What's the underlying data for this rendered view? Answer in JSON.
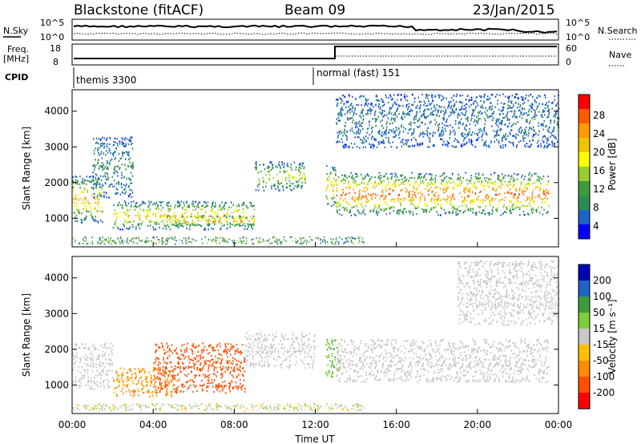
{
  "header": {
    "station": "Blackstone (fitACF)",
    "beam": "Beam 09",
    "date": "23/Jan/2015"
  },
  "noise_panel": {
    "left_label": "N.Sky",
    "right_label": "N.Search",
    "left_ticks": [
      "10^5",
      "10^0"
    ],
    "right_ticks": [
      "10^5",
      "10^0"
    ]
  },
  "freq_panel": {
    "left_label_line1": "Freq.",
    "left_label_line2": "[MHz]",
    "left_ticks": [
      "18",
      "8"
    ],
    "right_label": "Nave",
    "right_ticks": [
      "60",
      "0"
    ]
  },
  "cpid_panel": {
    "label": "CPID",
    "mode_1": "themis 3300",
    "mode_2": "normal (fast) 151"
  },
  "power_scale": {
    "title": "Power [dB]",
    "ticks": [
      "28",
      "24",
      "20",
      "16",
      "12",
      "8",
      "4"
    ],
    "colors": [
      "#ff0000",
      "#ff5a00",
      "#ff9a00",
      "#f2c400",
      "#ffff00",
      "#9acd32",
      "#3c9c3c",
      "#2e8b57",
      "#1e64c8",
      "#0000ff"
    ]
  },
  "velocity_scale": {
    "title": "Velocity [m s⁻¹]",
    "ticks": [
      "200",
      "100",
      "50",
      "15",
      "-15",
      "-50",
      "-100",
      "-200"
    ],
    "colors": [
      "#0000b4",
      "#1e64c8",
      "#3c9c3c",
      "#7ccd3c",
      "#c8c8c8",
      "#ffc000",
      "#ff8c00",
      "#ff5000",
      "#ff0000"
    ]
  },
  "chart_data": [
    {
      "type": "heatmap",
      "title": "Power [dB]",
      "xlabel": "",
      "ylabel": "Slant Range [km]",
      "x_ticks": [
        "00:00",
        "04:00",
        "08:00",
        "12:00",
        "16:00",
        "20:00",
        "00:00"
      ],
      "y_ticks": [
        1000,
        2000,
        3000,
        4000
      ],
      "ylim": [
        200,
        4600
      ],
      "xlim_hours": [
        0,
        24
      ],
      "scatter_regions": [
        {
          "t_start": 0.0,
          "t_end": 1.5,
          "range_km": [
            900,
            2200
          ],
          "peak_db": 22
        },
        {
          "t_start": 1.0,
          "t_end": 3.0,
          "range_km": [
            1600,
            3300
          ],
          "peak_db": 8
        },
        {
          "t_start": 2.0,
          "t_end": 9.0,
          "range_km": [
            700,
            1500
          ],
          "peak_db": 20
        },
        {
          "t_start": 4.5,
          "t_end": 9.0,
          "range_km": [
            800,
            1100
          ],
          "peak_db": 24
        },
        {
          "t_start": 9.0,
          "t_end": 11.5,
          "range_km": [
            1800,
            2600
          ],
          "peak_db": 16
        },
        {
          "t_start": 12.5,
          "t_end": 13.0,
          "range_km": [
            1300,
            2500
          ],
          "peak_db": 20
        },
        {
          "t_start": 13.0,
          "t_end": 23.5,
          "range_km": [
            1100,
            2300
          ],
          "peak_db": 26
        },
        {
          "t_start": 13.0,
          "t_end": 24.0,
          "range_km": [
            3000,
            4500
          ],
          "peak_db": 6
        }
      ]
    },
    {
      "type": "heatmap",
      "title": "Velocity [m s⁻¹]",
      "xlabel": "Time UT",
      "ylabel": "Slant Range [km]",
      "x_ticks": [
        "00:00",
        "04:00",
        "08:00",
        "12:00",
        "16:00",
        "20:00",
        "00:00"
      ],
      "y_ticks": [
        1000,
        2000,
        3000,
        4000
      ],
      "ylim": [
        200,
        4600
      ],
      "xlim_hours": [
        0,
        24
      ],
      "scatter_regions": [
        {
          "t_start": 0.0,
          "t_end": 2.0,
          "range_km": [
            900,
            2200
          ],
          "velocity_ms": 0
        },
        {
          "t_start": 2.0,
          "t_end": 5.0,
          "range_km": [
            700,
            1500
          ],
          "velocity_ms": -60
        },
        {
          "t_start": 4.0,
          "t_end": 8.5,
          "range_km": [
            800,
            2200
          ],
          "velocity_ms": -150
        },
        {
          "t_start": 8.5,
          "t_end": 12.0,
          "range_km": [
            1500,
            2500
          ],
          "velocity_ms": 0
        },
        {
          "t_start": 12.5,
          "t_end": 13.2,
          "range_km": [
            1200,
            2300
          ],
          "velocity_ms": 40
        },
        {
          "t_start": 13.0,
          "t_end": 23.5,
          "range_km": [
            1100,
            2300
          ],
          "velocity_ms": 0
        },
        {
          "t_start": 19.0,
          "t_end": 24.0,
          "range_km": [
            2700,
            4500
          ],
          "velocity_ms": 0
        }
      ]
    }
  ]
}
